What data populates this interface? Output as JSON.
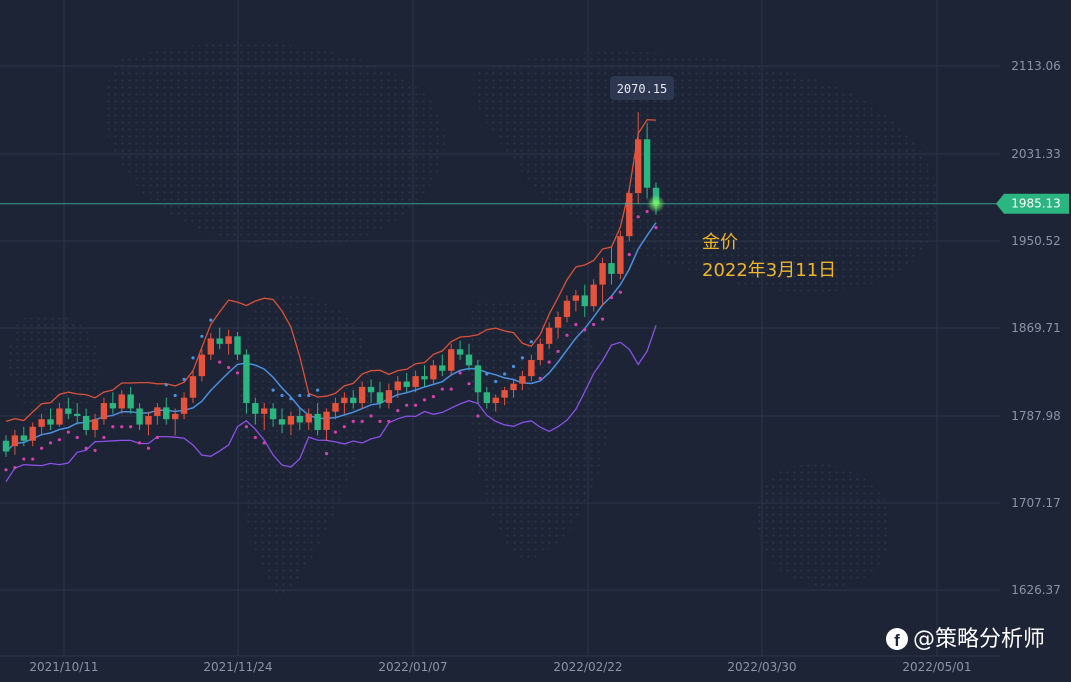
{
  "chart_data": {
    "type": "candlestick",
    "y_axis": {
      "ticks": [
        "2113.06",
        "2031.33",
        "1950.52",
        "1869.71",
        "1787.98",
        "1707.17",
        "1626.37"
      ],
      "ylim": [
        1600,
        2140
      ]
    },
    "x_axis": {
      "ticks": [
        "2021/10/11",
        "2021/11/24",
        "2022/01/07",
        "2022/02/22",
        "2022/03/30",
        "2022/05/01"
      ]
    },
    "last_price": {
      "label": "1985.13",
      "value": 1985.13,
      "color": "#2bb581"
    },
    "peak_label": {
      "label": "2070.15",
      "value": 2070.15
    },
    "annotation": {
      "line1": "金价",
      "line2": "2022年3月11日",
      "color": "#f0b429"
    },
    "watermark": {
      "icon": "facebook-icon",
      "text": "@策略分析师"
    },
    "colors": {
      "up": "#e5533d",
      "down": "#2bb581",
      "ma": "#4b8fe0",
      "bb_upper": "#d9513a",
      "bb_lower": "#8b50e8",
      "sar": "#d63fb0"
    },
    "ohlc_sample": [
      [
        1765,
        1770,
        1750,
        1755
      ],
      [
        1760,
        1775,
        1752,
        1770
      ],
      [
        1770,
        1778,
        1760,
        1765
      ],
      [
        1765,
        1782,
        1760,
        1778
      ],
      [
        1778,
        1790,
        1770,
        1785
      ],
      [
        1785,
        1795,
        1775,
        1780
      ],
      [
        1780,
        1800,
        1778,
        1795
      ],
      [
        1795,
        1805,
        1785,
        1790
      ],
      [
        1790,
        1800,
        1780,
        1788
      ],
      [
        1788,
        1795,
        1770,
        1775
      ],
      [
        1775,
        1790,
        1768,
        1785
      ],
      [
        1785,
        1805,
        1780,
        1800
      ],
      [
        1800,
        1810,
        1790,
        1795
      ],
      [
        1795,
        1812,
        1790,
        1808
      ],
      [
        1808,
        1815,
        1790,
        1795
      ],
      [
        1795,
        1800,
        1775,
        1780
      ],
      [
        1780,
        1792,
        1770,
        1788
      ],
      [
        1788,
        1800,
        1780,
        1796
      ],
      [
        1796,
        1805,
        1780,
        1785
      ],
      [
        1785,
        1795,
        1770,
        1790
      ],
      [
        1790,
        1810,
        1785,
        1805
      ],
      [
        1805,
        1830,
        1800,
        1825
      ],
      [
        1825,
        1850,
        1820,
        1845
      ],
      [
        1845,
        1865,
        1840,
        1860
      ],
      [
        1860,
        1870,
        1850,
        1855
      ],
      [
        1855,
        1868,
        1845,
        1862
      ],
      [
        1862,
        1866,
        1840,
        1845
      ],
      [
        1845,
        1850,
        1790,
        1800
      ],
      [
        1800,
        1805,
        1780,
        1790
      ],
      [
        1790,
        1800,
        1775,
        1795
      ],
      [
        1795,
        1800,
        1778,
        1785
      ],
      [
        1785,
        1795,
        1772,
        1780
      ],
      [
        1780,
        1792,
        1770,
        1788
      ],
      [
        1788,
        1795,
        1775,
        1782
      ],
      [
        1782,
        1795,
        1775,
        1790
      ],
      [
        1790,
        1800,
        1770,
        1775
      ],
      [
        1775,
        1795,
        1765,
        1792
      ],
      [
        1792,
        1805,
        1785,
        1800
      ],
      [
        1800,
        1810,
        1790,
        1805
      ],
      [
        1805,
        1812,
        1795,
        1800
      ],
      [
        1800,
        1820,
        1795,
        1815
      ],
      [
        1815,
        1822,
        1800,
        1810
      ],
      [
        1810,
        1820,
        1795,
        1800
      ],
      [
        1800,
        1818,
        1795,
        1812
      ],
      [
        1812,
        1825,
        1805,
        1820
      ],
      [
        1820,
        1828,
        1810,
        1815
      ],
      [
        1815,
        1830,
        1810,
        1825
      ],
      [
        1825,
        1835,
        1815,
        1822
      ],
      [
        1822,
        1840,
        1818,
        1835
      ],
      [
        1835,
        1845,
        1825,
        1830
      ],
      [
        1830,
        1855,
        1825,
        1850
      ],
      [
        1850,
        1858,
        1840,
        1845
      ],
      [
        1845,
        1855,
        1830,
        1835
      ],
      [
        1835,
        1840,
        1800,
        1810
      ],
      [
        1810,
        1815,
        1795,
        1800
      ],
      [
        1800,
        1808,
        1792,
        1805
      ],
      [
        1805,
        1815,
        1798,
        1812
      ],
      [
        1812,
        1822,
        1805,
        1818
      ],
      [
        1818,
        1830,
        1812,
        1825
      ],
      [
        1825,
        1845,
        1820,
        1840
      ],
      [
        1840,
        1860,
        1835,
        1855
      ],
      [
        1855,
        1875,
        1850,
        1870
      ],
      [
        1870,
        1885,
        1860,
        1880
      ],
      [
        1880,
        1900,
        1875,
        1895
      ],
      [
        1895,
        1905,
        1885,
        1900
      ],
      [
        1900,
        1910,
        1880,
        1890
      ],
      [
        1890,
        1915,
        1885,
        1910
      ],
      [
        1910,
        1935,
        1890,
        1930
      ],
      [
        1930,
        1945,
        1910,
        1920
      ],
      [
        1920,
        1960,
        1915,
        1955
      ],
      [
        1955,
        2000,
        1950,
        1995
      ],
      [
        1995,
        2070.15,
        1985,
        2045
      ],
      [
        2045,
        2060,
        1990,
        2000
      ],
      [
        2000,
        2005,
        1975,
        1985.13
      ]
    ]
  }
}
